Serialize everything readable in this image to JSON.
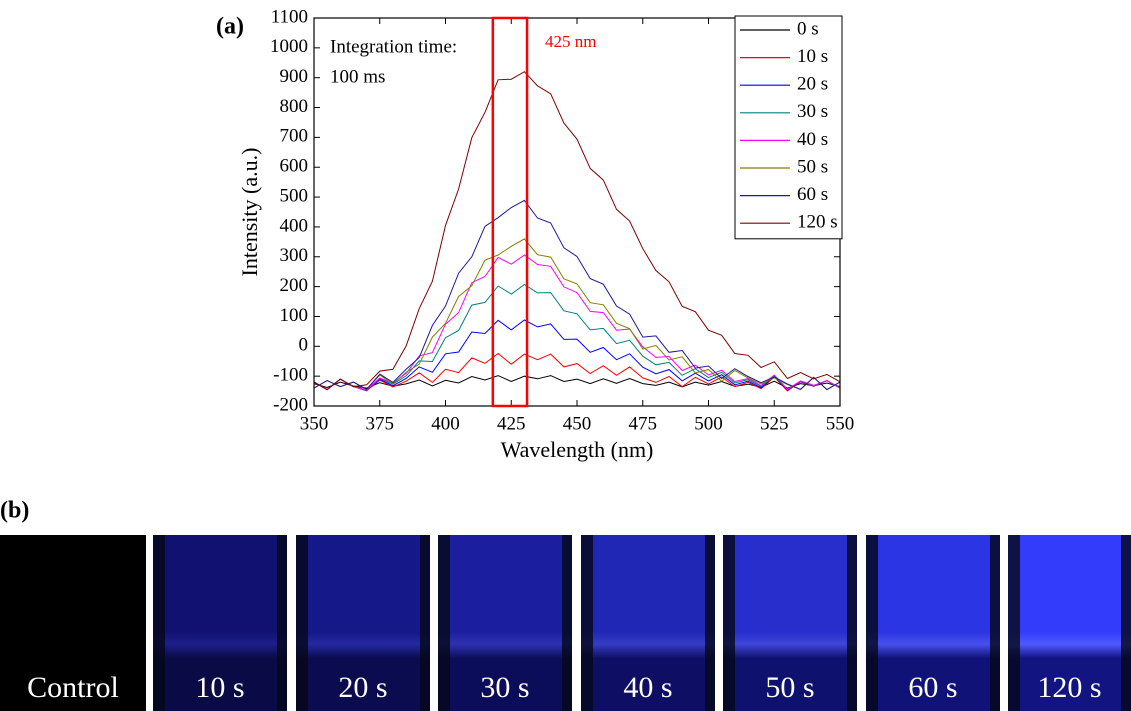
{
  "chart_data": {
    "type": "line",
    "panel_label": "(a)",
    "x_label": "Wavelength (nm)",
    "y_label": "Intensity (a.u.)",
    "annotations": [
      "Integration time:",
      "100 ms",
      "425 nm"
    ],
    "highlight": {
      "xlim": [
        418,
        431
      ],
      "color": "#ff0000"
    },
    "xlim": [
      350,
      550
    ],
    "xticks": [
      350,
      375,
      400,
      425,
      450,
      475,
      500,
      525,
      550
    ],
    "ylim": [
      -200,
      1100
    ],
    "yticks": [
      -200,
      -100,
      0,
      100,
      200,
      300,
      400,
      500,
      600,
      700,
      800,
      900,
      1000,
      1100
    ],
    "legend": "upper right",
    "x": [
      350,
      355,
      360,
      365,
      370,
      375,
      380,
      385,
      390,
      395,
      400,
      405,
      410,
      415,
      420,
      425,
      430,
      435,
      440,
      445,
      450,
      455,
      460,
      465,
      470,
      475,
      480,
      485,
      490,
      495,
      500,
      505,
      510,
      515,
      520,
      525,
      530,
      535,
      540,
      545,
      550
    ],
    "series": [
      {
        "name": "0 s",
        "color": "#000000",
        "values": [
          -125,
          -138,
          -120,
          -133,
          -140,
          -122,
          -134,
          -126,
          -113,
          -133,
          -114,
          -123,
          -101,
          -113,
          -98,
          -118,
          -100,
          -109,
          -98,
          -118,
          -110,
          -125,
          -109,
          -124,
          -108,
          -125,
          -131,
          -120,
          -136,
          -120,
          -130,
          -118,
          -134,
          -127,
          -137,
          -117,
          -140,
          -125,
          -132,
          -123,
          -135
        ]
      },
      {
        "name": "10 s",
        "color": "#ff0000",
        "values": [
          -120,
          -145,
          -110,
          -135,
          -149,
          -113,
          -136,
          -117,
          -89,
          -121,
          -77,
          -88,
          -39,
          -57,
          -24,
          -60,
          -26,
          -45,
          -26,
          -69,
          -58,
          -91,
          -65,
          -97,
          -69,
          -106,
          -121,
          -101,
          -135,
          -104,
          -126,
          -103,
          -135,
          -121,
          -142,
          -103,
          -149,
          -119,
          -134,
          -115,
          -140
        ]
      },
      {
        "name": "20 s",
        "color": "#0000ff",
        "values": [
          -120,
          -145,
          -110,
          -135,
          -148,
          -111,
          -132,
          -108,
          -69,
          -87,
          -25,
          -19,
          48,
          43,
          87,
          55,
          88,
          65,
          75,
          23,
          24,
          -20,
          -4,
          -45,
          -25,
          -70,
          -92,
          -78,
          -116,
          -90,
          -116,
          -95,
          -129,
          -117,
          -139,
          -101,
          -147,
          -118,
          -133,
          -115,
          -140
        ]
      },
      {
        "name": "30 s",
        "color": "#008080",
        "values": [
          -120,
          -145,
          -110,
          -135,
          -147,
          -108,
          -127,
          -99,
          -49,
          -51,
          29,
          53,
          138,
          147,
          202,
          175,
          207,
          179,
          180,
          119,
          109,
          55,
          60,
          9,
          20,
          -33,
          -62,
          -54,
          -97,
          -75,
          -105,
          -87,
          -123,
          -112,
          -135,
          -98,
          -145,
          -117,
          -132,
          -115,
          -140
        ]
      },
      {
        "name": "40 s",
        "color": "#ff00ff",
        "values": [
          -120,
          -145,
          -110,
          -135,
          -146,
          -106,
          -123,
          -91,
          -32,
          -21,
          74,
          113,
          213,
          234,
          298,
          275,
          306,
          274,
          268,
          199,
          180,
          117,
          113,
          54,
          58,
          -2,
          -37,
          -34,
          -81,
          -63,
          -96,
          -80,
          -118,
          -108,
          -132,
          -96,
          -144,
          -116,
          -131,
          -115,
          -140
        ]
      },
      {
        "name": "50 s",
        "color": "#808000",
        "values": [
          -140,
          -115,
          -135,
          -120,
          -145,
          -96,
          -126,
          -87,
          -60,
          31,
          77,
          167,
          203,
          289,
          306,
          335,
          360,
          307,
          299,
          226,
          209,
          146,
          139,
          77,
          59,
          -9,
          3,
          -46,
          -35,
          -89,
          -78,
          -117,
          -81,
          -106,
          -126,
          -106,
          -128,
          -145,
          -105,
          -145,
          -120
        ]
      },
      {
        "name": "60 s",
        "color": "#1a1a9a",
        "values": [
          -140,
          -115,
          -135,
          -120,
          -144,
          -93,
          -121,
          -77,
          -38,
          70,
          135,
          245,
          300,
          402,
          431,
          465,
          489,
          430,
          413,
          330,
          301,
          227,
          208,
          135,
          108,
          31,
          35,
          -20,
          -14,
          -73,
          -66,
          -108,
          -75,
          -101,
          -122,
          -103,
          -126,
          -144,
          -104,
          -145,
          -120
        ]
      },
      {
        "name": "120 s",
        "color": "#800000",
        "values": [
          -120,
          -145,
          -110,
          -135,
          -129,
          -83,
          -77,
          1,
          126,
          218,
          405,
          527,
          699,
          784,
          893,
          895,
          920,
          873,
          846,
          748,
          694,
          596,
          557,
          459,
          420,
          327,
          254,
          216,
          134,
          116,
          54,
          37,
          -24,
          -30,
          -71,
          -52,
          -108,
          -88,
          -109,
          -94,
          -119
        ]
      }
    ]
  },
  "panel_b": {
    "label": "(b)",
    "images": [
      "Control",
      "10 s",
      "20 s",
      "30 s",
      "40 s",
      "50 s",
      "60 s",
      "120 s"
    ]
  }
}
